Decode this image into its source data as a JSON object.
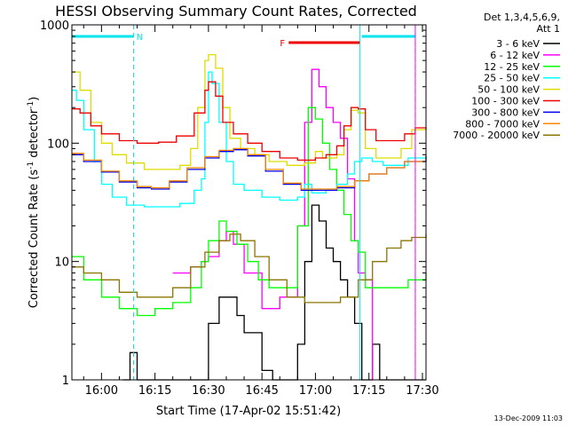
{
  "chart_data": {
    "type": "line",
    "title": "HESSI Observing Summary Count Rates, Corrected",
    "xlabel": "Start Time (17-Apr-02 15:51:42)",
    "ylabel": "Corrected Count Rate (s⁻¹ detector⁻¹)",
    "ylabel_main": "Corrected Count Rate (s",
    "ylabel_mid": " detector",
    "ylabel_sup": "-1",
    "ylabel_close": ")",
    "y_scale": "log",
    "ylim": [
      1,
      1000
    ],
    "xlim": [
      "15:51:42",
      "17:31:00"
    ],
    "y_ticks": [
      {
        "value": 1,
        "label": "1"
      },
      {
        "value": 10,
        "label": "10"
      },
      {
        "value": 100,
        "label": "100"
      },
      {
        "value": 1000,
        "label": "1000"
      }
    ],
    "x_ticks": [
      {
        "time": "16:00",
        "label": "16:00"
      },
      {
        "time": "16:15",
        "label": "16:15"
      },
      {
        "time": "16:30",
        "label": "16:30"
      },
      {
        "time": "16:45",
        "label": "16:45"
      },
      {
        "time": "17:00",
        "label": "17:00"
      },
      {
        "time": "17:15",
        "label": "17:15"
      },
      {
        "time": "17:30",
        "label": "17:30"
      }
    ],
    "legend_header": [
      "Det 1,3,4,5,6,9,",
      "Att 1"
    ],
    "legend_position": "right of plot",
    "annotations": [
      {
        "label": "N",
        "type": "night",
        "start": "15:51:42",
        "end": "16:09:00",
        "color": "#00e5ee"
      },
      {
        "label": "",
        "type": "night",
        "start": "17:13:00",
        "end": "17:28:00",
        "color": "#00e5ee"
      },
      {
        "label": "F",
        "type": "flare",
        "start": "16:52:30",
        "end": "17:12:30",
        "color": "#ee0000"
      }
    ],
    "vertical_lines": [
      {
        "time": "16:09:00",
        "color": "#00e5ee",
        "style": "dashed"
      },
      {
        "time": "17:12:30",
        "color": "#00e5ee",
        "style": "solid"
      },
      {
        "time": "17:28:00",
        "color": "#00e5ee",
        "style": "dashed"
      },
      {
        "time": "17:28:00",
        "color": "#ff00ff",
        "style": "solid"
      }
    ],
    "series": [
      {
        "name": "3 - 6 keV",
        "color": "#000000",
        "points": [
          [
            "16:06",
            1.0
          ],
          [
            "16:08",
            1.7
          ],
          [
            "16:10",
            1.0
          ],
          [
            "16:28",
            1.0
          ],
          [
            "16:30",
            3
          ],
          [
            "16:33",
            5
          ],
          [
            "16:35",
            5
          ],
          [
            "16:38",
            3.5
          ],
          [
            "16:40",
            2.5
          ],
          [
            "16:45",
            1.2
          ],
          [
            "16:48",
            1.0
          ],
          [
            "16:55",
            2
          ],
          [
            "16:57",
            10
          ],
          [
            "16:59",
            30
          ],
          [
            "17:01",
            22
          ],
          [
            "17:03",
            13
          ],
          [
            "17:05",
            10
          ],
          [
            "17:07",
            7
          ],
          [
            "17:09",
            5
          ],
          [
            "17:11",
            3
          ],
          [
            "17:13",
            1.0
          ],
          [
            "17:16",
            2
          ],
          [
            "17:18",
            1.0
          ],
          [
            "17:31",
            1.0
          ]
        ]
      },
      {
        "name": "6 - 12 keV",
        "color": "#ff00ff",
        "points": [
          [
            "16:20",
            8
          ],
          [
            "16:25",
            9
          ],
          [
            "16:28",
            10
          ],
          [
            "16:30",
            11
          ],
          [
            "16:33",
            15
          ],
          [
            "16:35",
            18
          ],
          [
            "16:37",
            14
          ],
          [
            "16:40",
            8
          ],
          [
            "16:45",
            4
          ],
          [
            "16:50",
            5
          ],
          [
            "16:55",
            20
          ],
          [
            "16:57",
            150
          ],
          [
            "16:59",
            420
          ],
          [
            "17:01",
            300
          ],
          [
            "17:03",
            200
          ],
          [
            "17:05",
            150
          ],
          [
            "17:07",
            110
          ],
          [
            "17:09",
            50
          ],
          [
            "17:11",
            15
          ],
          [
            "17:12",
            8
          ],
          [
            "17:14",
            7
          ],
          [
            "17:16",
            1.0
          ]
        ]
      },
      {
        "name": "12 - 25 keV",
        "color": "#00ff00",
        "points": [
          [
            "15:51:42",
            11
          ],
          [
            "15:55",
            7
          ],
          [
            "16:00",
            5
          ],
          [
            "16:05",
            4
          ],
          [
            "16:10",
            3.5
          ],
          [
            "16:15",
            4
          ],
          [
            "16:20",
            4.5
          ],
          [
            "16:25",
            6
          ],
          [
            "16:28",
            10
          ],
          [
            "16:30",
            15
          ],
          [
            "16:33",
            22
          ],
          [
            "16:35",
            18
          ],
          [
            "16:38",
            14
          ],
          [
            "16:41",
            10
          ],
          [
            "16:44",
            7
          ],
          [
            "16:47",
            6
          ],
          [
            "16:50",
            6
          ],
          [
            "16:55",
            20
          ],
          [
            "16:58",
            200
          ],
          [
            "17:00",
            160
          ],
          [
            "17:02",
            100
          ],
          [
            "17:04",
            60
          ],
          [
            "17:06",
            40
          ],
          [
            "17:08",
            25
          ],
          [
            "17:10",
            15
          ],
          [
            "17:12",
            12
          ],
          [
            "17:14",
            6
          ],
          [
            "17:18",
            6
          ],
          [
            "17:22",
            6
          ],
          [
            "17:26",
            7
          ],
          [
            "17:31",
            8
          ]
        ]
      },
      {
        "name": "25 - 50 keV",
        "color": "#00ffff",
        "points": [
          [
            "15:51:42",
            280
          ],
          [
            "15:53",
            230
          ],
          [
            "15:55",
            130
          ],
          [
            "15:58",
            70
          ],
          [
            "16:00",
            45
          ],
          [
            "16:03",
            35
          ],
          [
            "16:07",
            30
          ],
          [
            "16:12",
            29
          ],
          [
            "16:18",
            29
          ],
          [
            "16:22",
            31
          ],
          [
            "16:26",
            40
          ],
          [
            "16:28",
            50
          ],
          [
            "16:29",
            150
          ],
          [
            "16:30",
            400
          ],
          [
            "16:31",
            320
          ],
          [
            "16:33",
            150
          ],
          [
            "16:35",
            70
          ],
          [
            "16:37",
            45
          ],
          [
            "16:40",
            40
          ],
          [
            "16:45",
            35
          ],
          [
            "16:50",
            33
          ],
          [
            "16:55",
            35
          ],
          [
            "16:57",
            45
          ],
          [
            "16:59",
            38
          ],
          [
            "17:03",
            40
          ],
          [
            "17:06",
            45
          ],
          [
            "17:09",
            55
          ],
          [
            "17:11",
            70
          ],
          [
            "17:13",
            75
          ],
          [
            "17:16",
            70
          ],
          [
            "17:19",
            65
          ],
          [
            "17:23",
            65
          ],
          [
            "17:26",
            75
          ],
          [
            "17:31",
            80
          ]
        ]
      },
      {
        "name": "50 - 100 keV",
        "color": "#dddd00",
        "points": [
          [
            "15:51:42",
            400
          ],
          [
            "15:54",
            280
          ],
          [
            "15:57",
            150
          ],
          [
            "16:00",
            100
          ],
          [
            "16:03",
            80
          ],
          [
            "16:07",
            68
          ],
          [
            "16:12",
            60
          ],
          [
            "16:18",
            60
          ],
          [
            "16:22",
            65
          ],
          [
            "16:25",
            90
          ],
          [
            "16:27",
            200
          ],
          [
            "16:29",
            500
          ],
          [
            "16:30",
            560
          ],
          [
            "16:32",
            430
          ],
          [
            "16:34",
            200
          ],
          [
            "16:36",
            110
          ],
          [
            "16:39",
            90
          ],
          [
            "16:43",
            80
          ],
          [
            "16:47",
            70
          ],
          [
            "16:52",
            65
          ],
          [
            "16:57",
            68
          ],
          [
            "17:00",
            85
          ],
          [
            "17:02",
            75
          ],
          [
            "17:06",
            80
          ],
          [
            "17:08",
            130
          ],
          [
            "17:10",
            190
          ],
          [
            "17:12",
            180
          ],
          [
            "17:14",
            90
          ],
          [
            "17:17",
            75
          ],
          [
            "17:20",
            75
          ],
          [
            "17:24",
            90
          ],
          [
            "17:27",
            130
          ],
          [
            "17:31",
            130
          ]
        ]
      },
      {
        "name": "100 - 300 keV",
        "color": "#ee0000",
        "points": [
          [
            "15:51:42",
            195
          ],
          [
            "15:54",
            180
          ],
          [
            "15:57",
            140
          ],
          [
            "16:00",
            120
          ],
          [
            "16:05",
            105
          ],
          [
            "16:10",
            100
          ],
          [
            "16:16",
            102
          ],
          [
            "16:21",
            115
          ],
          [
            "16:26",
            180
          ],
          [
            "16:29",
            280
          ],
          [
            "16:30",
            330
          ],
          [
            "16:32",
            250
          ],
          [
            "16:34",
            150
          ],
          [
            "16:37",
            120
          ],
          [
            "16:41",
            100
          ],
          [
            "16:45",
            85
          ],
          [
            "16:50",
            75
          ],
          [
            "16:55",
            72
          ],
          [
            "17:00",
            75
          ],
          [
            "17:03",
            80
          ],
          [
            "17:06",
            95
          ],
          [
            "17:08",
            140
          ],
          [
            "17:10",
            200
          ],
          [
            "17:12",
            195
          ],
          [
            "17:14",
            130
          ],
          [
            "17:17",
            105
          ],
          [
            "17:21",
            105
          ],
          [
            "17:25",
            120
          ],
          [
            "17:28",
            135
          ],
          [
            "17:31",
            130
          ]
        ]
      },
      {
        "name": "300 - 800 keV",
        "color": "#0000ee",
        "points": [
          [
            "15:51:42",
            80
          ],
          [
            "15:55",
            70
          ],
          [
            "16:00",
            57
          ],
          [
            "16:05",
            47
          ],
          [
            "16:10",
            42
          ],
          [
            "16:14",
            41
          ],
          [
            "16:19",
            47
          ],
          [
            "16:24",
            60
          ],
          [
            "16:29",
            75
          ],
          [
            "16:33",
            85
          ],
          [
            "16:37",
            88
          ],
          [
            "16:41",
            78
          ],
          [
            "16:46",
            58
          ],
          [
            "16:51",
            45
          ],
          [
            "16:56",
            40
          ],
          [
            "17:01",
            40
          ],
          [
            "17:06",
            42
          ],
          [
            "17:11",
            48
          ],
          [
            "17:15",
            55
          ],
          [
            "17:20",
            62
          ],
          [
            "17:25",
            70
          ],
          [
            "17:31",
            78
          ]
        ]
      },
      {
        "name": "800 - 7000 keV",
        "color": "#ff8800",
        "points": [
          [
            "15:51:42",
            82
          ],
          [
            "15:55",
            72
          ],
          [
            "16:00",
            58
          ],
          [
            "16:05",
            48
          ],
          [
            "16:10",
            43
          ],
          [
            "16:14",
            42
          ],
          [
            "16:19",
            48
          ],
          [
            "16:24",
            62
          ],
          [
            "16:29",
            77
          ],
          [
            "16:33",
            87
          ],
          [
            "16:37",
            90
          ],
          [
            "16:41",
            80
          ],
          [
            "16:46",
            60
          ],
          [
            "16:51",
            46
          ],
          [
            "16:56",
            41
          ],
          [
            "17:01",
            41
          ],
          [
            "17:06",
            43
          ],
          [
            "17:11",
            48
          ],
          [
            "17:15",
            55
          ],
          [
            "17:20",
            62
          ],
          [
            "17:25",
            70
          ],
          [
            "17:31",
            78
          ]
        ]
      },
      {
        "name": "7000 - 20000 keV",
        "color": "#8b7500",
        "points": [
          [
            "15:51:42",
            9
          ],
          [
            "15:55",
            8
          ],
          [
            "16:00",
            7
          ],
          [
            "16:05",
            5.5
          ],
          [
            "16:10",
            5
          ],
          [
            "16:15",
            5
          ],
          [
            "16:20",
            6
          ],
          [
            "16:25",
            9
          ],
          [
            "16:29",
            12
          ],
          [
            "16:33",
            15
          ],
          [
            "16:36",
            17
          ],
          [
            "16:39",
            15
          ],
          [
            "16:43",
            11
          ],
          [
            "16:47",
            7
          ],
          [
            "16:52",
            5
          ],
          [
            "16:57",
            4.5
          ],
          [
            "17:02",
            4.5
          ],
          [
            "17:07",
            5
          ],
          [
            "17:12",
            7
          ],
          [
            "17:16",
            10
          ],
          [
            "17:20",
            13
          ],
          [
            "17:24",
            15
          ],
          [
            "17:27",
            16
          ],
          [
            "17:31",
            17
          ]
        ]
      }
    ]
  },
  "footer": {
    "timestamp": "13-Dec-2009 11:03"
  }
}
